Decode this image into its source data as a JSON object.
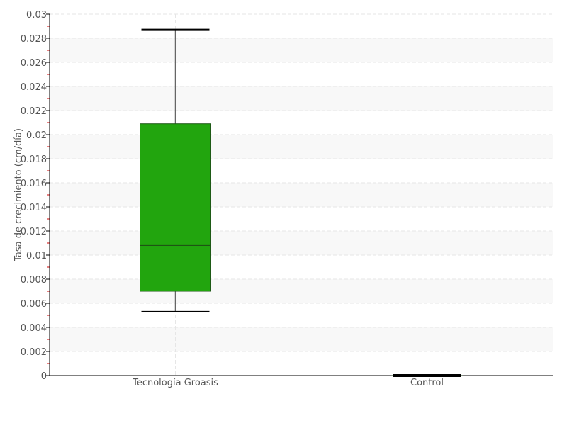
{
  "chart_data": {
    "type": "box",
    "title": "",
    "xlabel": "",
    "ylabel": "Tasa de crecimiento (cm/día)",
    "ylim": [
      0,
      0.03
    ],
    "yticks": [
      "0",
      "0.002",
      "0.004",
      "0.006",
      "0.008",
      "0.01",
      "0.012",
      "0.014",
      "0.016",
      "0.018",
      "0.02",
      "0.022",
      "0.024",
      "0.026",
      "0.028",
      "0.03"
    ],
    "grid": true,
    "categories": [
      "Tecnología Groasis",
      "Control"
    ],
    "boxes": [
      {
        "category": "Tecnología Groasis",
        "min": 0.0053,
        "q1": 0.007,
        "median": 0.0108,
        "q3": 0.0209,
        "max": 0.0287,
        "color": "#22a50e"
      },
      {
        "category": "Control",
        "min": 0,
        "q1": 0,
        "median": 0,
        "q3": 0,
        "max": 0,
        "color": "#22a50e"
      }
    ]
  }
}
